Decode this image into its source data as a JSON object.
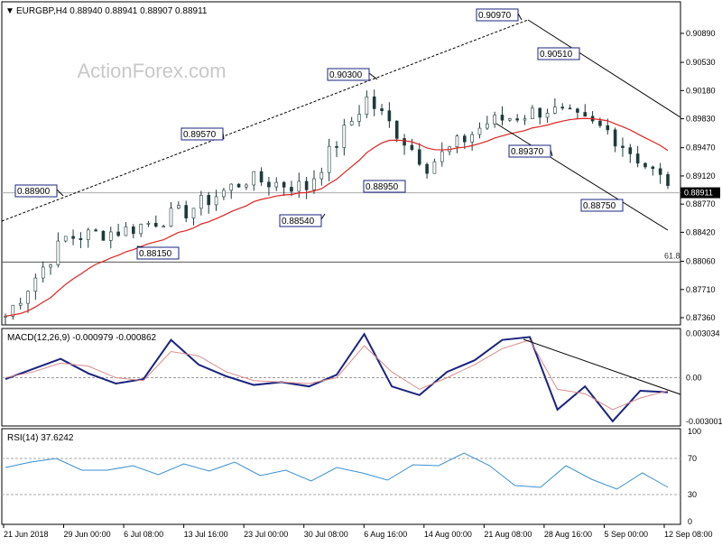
{
  "header": {
    "symbol_text": "EURGBP,H4  0.88940 0.88941 0.88907 0.88911",
    "watermark": "ActionForex.com"
  },
  "chart_data": [
    {
      "type": "candlestick",
      "panel": "price",
      "title": "EURGBP,H4",
      "ohlc_header": {
        "open": 0.8894,
        "high": 0.88941,
        "low": 0.88907,
        "close": 0.88911
      },
      "ylim": [
        0.8736,
        0.9108
      ],
      "y_ticks": [
        "0.90890",
        "0.90530",
        "0.90180",
        "0.89830",
        "0.89470",
        "0.89120",
        "0.88770",
        "0.88420",
        "0.88060",
        "0.87710",
        "0.87360"
      ],
      "x_ticks": [
        "21 Jun 2018",
        "29 Jun 00:00",
        "6 Jul 08:00",
        "13 Jul 16:00",
        "23 Jul 00:00",
        "30 Jul 08:00",
        "6 Aug 16:00",
        "14 Aug 00:00",
        "21 Aug 08:00",
        "28 Aug 16:00",
        "5 Sep 00:00",
        "12 Sep 08:00"
      ],
      "current_price": "0.88911",
      "level_line": {
        "label": "61.8",
        "value": 0.8805
      },
      "price_labels": [
        "0.88900",
        "0.88150",
        "0.89570",
        "0.88540",
        "0.90300",
        "0.88950",
        "0.90970",
        "0.90510",
        "0.89370",
        "0.88750"
      ],
      "moving_average": {
        "color": "#dd2222"
      },
      "series": [
        {
          "x": "21 Jun 2018",
          "y": 0.8738
        },
        {
          "x": "29 Jun 00:00",
          "y": 0.8835
        },
        {
          "x": "6 Jul 08:00",
          "y": 0.8845
        },
        {
          "x": "13 Jul 16:00",
          "y": 0.8868
        },
        {
          "x": "23 Jul 00:00",
          "y": 0.8908
        },
        {
          "x": "30 Jul 08:00",
          "y": 0.8898
        },
        {
          "x": "6 Aug 16:00",
          "y": 0.9008
        },
        {
          "x": "14 Aug 00:00",
          "y": 0.8925
        },
        {
          "x": "21 Aug 08:00",
          "y": 0.8978
        },
        {
          "x": "28 Aug 16:00",
          "y": 0.8995
        },
        {
          "x": "5 Sep 00:00",
          "y": 0.8968
        },
        {
          "x": "12 Sep 08:00",
          "y": 0.89
        }
      ]
    },
    {
      "type": "line",
      "panel": "macd",
      "title": "MACD(12,26,9) -0.000979 -0.000862",
      "ylim": [
        -0.0032,
        0.0032
      ],
      "y_ticks": [
        "0.003034",
        "0.00",
        "-0.003001"
      ],
      "series": [
        {
          "name": "MACD",
          "color": "#1a237e",
          "values": [
            -0.0001,
            0.0006,
            0.0013,
            0.0003,
            -0.0004,
            -0.0001,
            0.0026,
            0.0009,
            0.0001,
            -0.0005,
            -0.0003,
            -0.0006,
            0.0002,
            0.003,
            -0.0006,
            -0.0012,
            0.0004,
            0.0012,
            0.0026,
            0.0028,
            -0.0022,
            -0.0006,
            -0.003,
            -0.0009,
            -0.001
          ]
        },
        {
          "name": "Signal",
          "color": "#d98c8c",
          "values": [
            0.0,
            0.0004,
            0.001,
            0.0008,
            0.0,
            -0.0002,
            0.0018,
            0.0015,
            0.0004,
            -0.0002,
            -0.0003,
            -0.0004,
            0.0,
            0.0022,
            0.0004,
            -0.0008,
            0.0,
            0.0009,
            0.002,
            0.0026,
            -0.0008,
            -0.0011,
            -0.0022,
            -0.0014,
            -0.0009
          ]
        }
      ]
    },
    {
      "type": "line",
      "panel": "rsi",
      "title": "RSI(14) 37.6242",
      "ylim": [
        0,
        100
      ],
      "y_ticks": [
        "100",
        "70",
        "30",
        "0"
      ],
      "levels": [
        70,
        30
      ],
      "series": [
        {
          "name": "RSI",
          "color": "#3a8fd0",
          "values": [
            60,
            66,
            70,
            57,
            57,
            62,
            52,
            64,
            56,
            66,
            51,
            57,
            45,
            60,
            54,
            46,
            63,
            62,
            76,
            62,
            40,
            38,
            62,
            47,
            36,
            54,
            38
          ]
        }
      ]
    }
  ]
}
